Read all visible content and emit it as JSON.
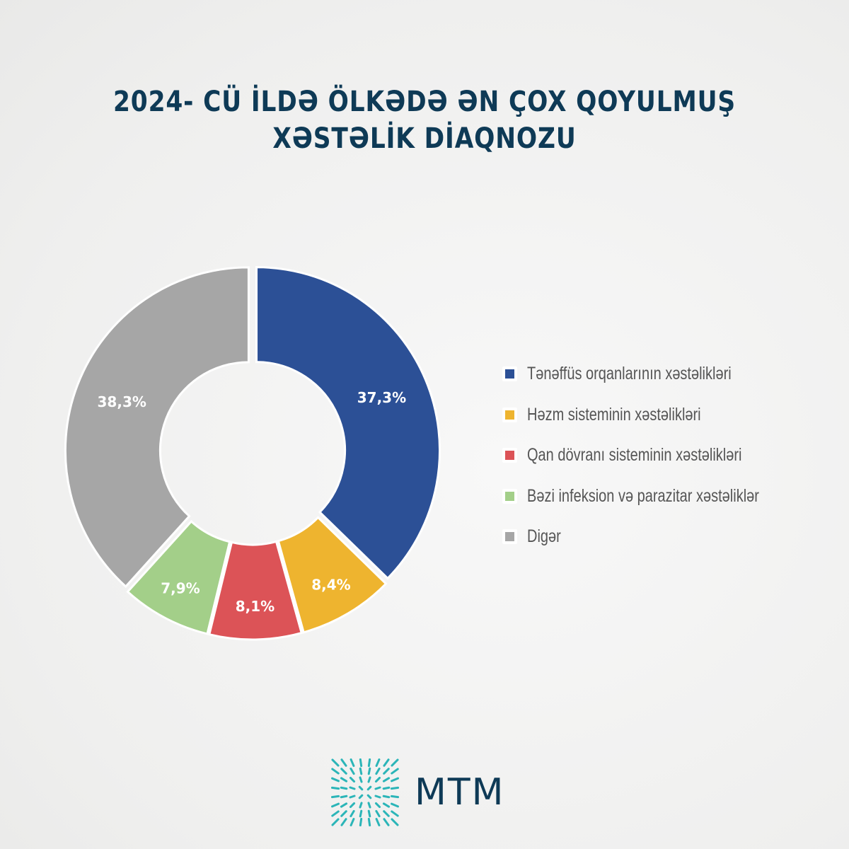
{
  "chart_data": {
    "type": "pie",
    "title": "2024- CÜ İLDƏ ÖLKƏDƏ ƏN ÇOX QOYULMUŞ XƏSTƏLİK DİAQNOZU",
    "donut": true,
    "legend_position": "right",
    "categories": [
      "Tənəffüs orqanlarının xəstəlikləri",
      "Həzm sisteminin xəstəlikləri",
      "Qan dövranı sisteminin xəstəlikləri",
      "Bəzi infeksion və parazitar xəstəliklər",
      "Digər"
    ],
    "values": [
      37.3,
      8.4,
      8.1,
      7.9,
      38.3
    ],
    "data_labels": [
      "37,3%",
      "8,4%",
      "8,1%",
      "7,9%",
      "38,3%"
    ],
    "colors": [
      "#2c5096",
      "#eeb42f",
      "#dc5357",
      "#a3cf89",
      "#a6a6a6"
    ]
  },
  "logo": {
    "text": "MTM",
    "color": "#0e3a56",
    "mark_color": "#2bb5b8"
  }
}
